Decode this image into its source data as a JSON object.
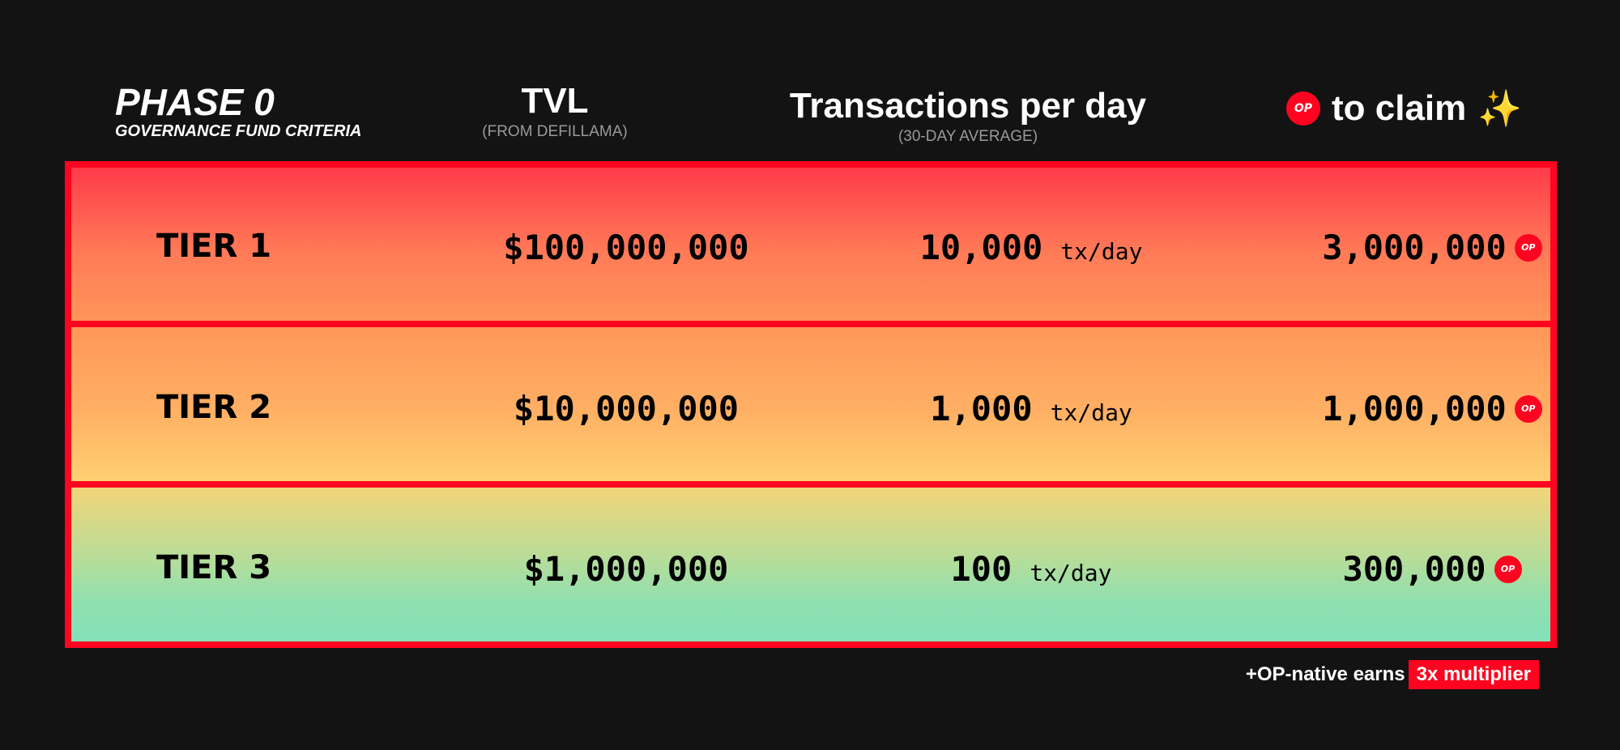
{
  "header": {
    "phase_title": "PHASE 0",
    "phase_subtitle": "GOVERNANCE FUND CRITERIA",
    "tvl_title": "TVL",
    "tvl_subtitle": "(FROM DEFILLAMA)",
    "tx_title": "Transactions per day",
    "tx_subtitle": "(30-DAY AVERAGE)",
    "claim_icon": "OP",
    "claim_title": "to claim",
    "claim_sparkle": "✨"
  },
  "tiers": [
    {
      "tier": "TIER 1",
      "tvl": "$100,000,000",
      "tx": "10,000",
      "tx_unit": "tx/day",
      "claim": "3,000,000",
      "claim_icon": "OP"
    },
    {
      "tier": "TIER 2",
      "tvl": "$10,000,000",
      "tx": "1,000",
      "tx_unit": "tx/day",
      "claim": "1,000,000",
      "claim_icon": "OP"
    },
    {
      "tier": "TIER 3",
      "tvl": "$1,000,000",
      "tx": "100",
      "tx_unit": "tx/day",
      "claim": "300,000",
      "claim_icon": "OP"
    }
  ],
  "footer": {
    "text": "+OP-native earns",
    "badge": "3x multiplier"
  },
  "colors": {
    "background": "#131313",
    "accent_red": "#ff0420"
  }
}
